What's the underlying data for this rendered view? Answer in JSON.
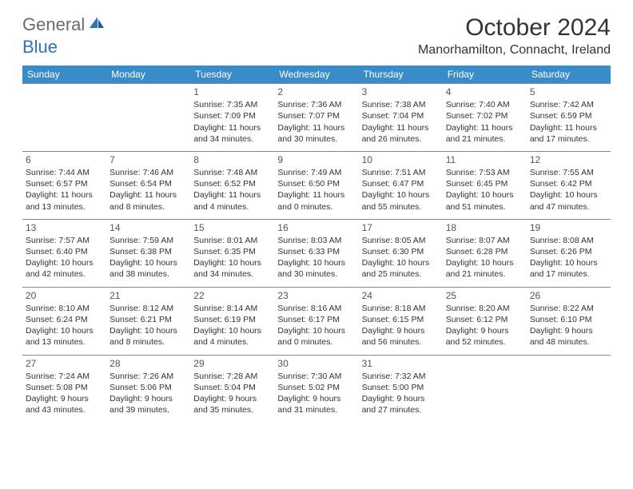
{
  "logo": {
    "part1": "General",
    "part2": "Blue"
  },
  "title": "October 2024",
  "location": "Manorhamilton, Connacht, Ireland",
  "colors": {
    "header_bg": "#3a8cc8",
    "header_fg": "#ffffff",
    "rule": "#888888",
    "text": "#333333",
    "logo_gray": "#6b6b6b",
    "logo_blue": "#2e75b6"
  },
  "weekdays": [
    "Sunday",
    "Monday",
    "Tuesday",
    "Wednesday",
    "Thursday",
    "Friday",
    "Saturday"
  ],
  "weeks": [
    [
      null,
      null,
      {
        "n": "1",
        "sr": "7:35 AM",
        "ss": "7:09 PM",
        "dl": "11 hours and 34 minutes."
      },
      {
        "n": "2",
        "sr": "7:36 AM",
        "ss": "7:07 PM",
        "dl": "11 hours and 30 minutes."
      },
      {
        "n": "3",
        "sr": "7:38 AM",
        "ss": "7:04 PM",
        "dl": "11 hours and 26 minutes."
      },
      {
        "n": "4",
        "sr": "7:40 AM",
        "ss": "7:02 PM",
        "dl": "11 hours and 21 minutes."
      },
      {
        "n": "5",
        "sr": "7:42 AM",
        "ss": "6:59 PM",
        "dl": "11 hours and 17 minutes."
      }
    ],
    [
      {
        "n": "6",
        "sr": "7:44 AM",
        "ss": "6:57 PM",
        "dl": "11 hours and 13 minutes."
      },
      {
        "n": "7",
        "sr": "7:46 AM",
        "ss": "6:54 PM",
        "dl": "11 hours and 8 minutes."
      },
      {
        "n": "8",
        "sr": "7:48 AM",
        "ss": "6:52 PM",
        "dl": "11 hours and 4 minutes."
      },
      {
        "n": "9",
        "sr": "7:49 AM",
        "ss": "6:50 PM",
        "dl": "11 hours and 0 minutes."
      },
      {
        "n": "10",
        "sr": "7:51 AM",
        "ss": "6:47 PM",
        "dl": "10 hours and 55 minutes."
      },
      {
        "n": "11",
        "sr": "7:53 AM",
        "ss": "6:45 PM",
        "dl": "10 hours and 51 minutes."
      },
      {
        "n": "12",
        "sr": "7:55 AM",
        "ss": "6:42 PM",
        "dl": "10 hours and 47 minutes."
      }
    ],
    [
      {
        "n": "13",
        "sr": "7:57 AM",
        "ss": "6:40 PM",
        "dl": "10 hours and 42 minutes."
      },
      {
        "n": "14",
        "sr": "7:59 AM",
        "ss": "6:38 PM",
        "dl": "10 hours and 38 minutes."
      },
      {
        "n": "15",
        "sr": "8:01 AM",
        "ss": "6:35 PM",
        "dl": "10 hours and 34 minutes."
      },
      {
        "n": "16",
        "sr": "8:03 AM",
        "ss": "6:33 PM",
        "dl": "10 hours and 30 minutes."
      },
      {
        "n": "17",
        "sr": "8:05 AM",
        "ss": "6:30 PM",
        "dl": "10 hours and 25 minutes."
      },
      {
        "n": "18",
        "sr": "8:07 AM",
        "ss": "6:28 PM",
        "dl": "10 hours and 21 minutes."
      },
      {
        "n": "19",
        "sr": "8:08 AM",
        "ss": "6:26 PM",
        "dl": "10 hours and 17 minutes."
      }
    ],
    [
      {
        "n": "20",
        "sr": "8:10 AM",
        "ss": "6:24 PM",
        "dl": "10 hours and 13 minutes."
      },
      {
        "n": "21",
        "sr": "8:12 AM",
        "ss": "6:21 PM",
        "dl": "10 hours and 8 minutes."
      },
      {
        "n": "22",
        "sr": "8:14 AM",
        "ss": "6:19 PM",
        "dl": "10 hours and 4 minutes."
      },
      {
        "n": "23",
        "sr": "8:16 AM",
        "ss": "6:17 PM",
        "dl": "10 hours and 0 minutes."
      },
      {
        "n": "24",
        "sr": "8:18 AM",
        "ss": "6:15 PM",
        "dl": "9 hours and 56 minutes."
      },
      {
        "n": "25",
        "sr": "8:20 AM",
        "ss": "6:12 PM",
        "dl": "9 hours and 52 minutes."
      },
      {
        "n": "26",
        "sr": "8:22 AM",
        "ss": "6:10 PM",
        "dl": "9 hours and 48 minutes."
      }
    ],
    [
      {
        "n": "27",
        "sr": "7:24 AM",
        "ss": "5:08 PM",
        "dl": "9 hours and 43 minutes."
      },
      {
        "n": "28",
        "sr": "7:26 AM",
        "ss": "5:06 PM",
        "dl": "9 hours and 39 minutes."
      },
      {
        "n": "29",
        "sr": "7:28 AM",
        "ss": "5:04 PM",
        "dl": "9 hours and 35 minutes."
      },
      {
        "n": "30",
        "sr": "7:30 AM",
        "ss": "5:02 PM",
        "dl": "9 hours and 31 minutes."
      },
      {
        "n": "31",
        "sr": "7:32 AM",
        "ss": "5:00 PM",
        "dl": "9 hours and 27 minutes."
      },
      null,
      null
    ]
  ],
  "labels": {
    "sunrise": "Sunrise:",
    "sunset": "Sunset:",
    "daylight": "Daylight:"
  }
}
